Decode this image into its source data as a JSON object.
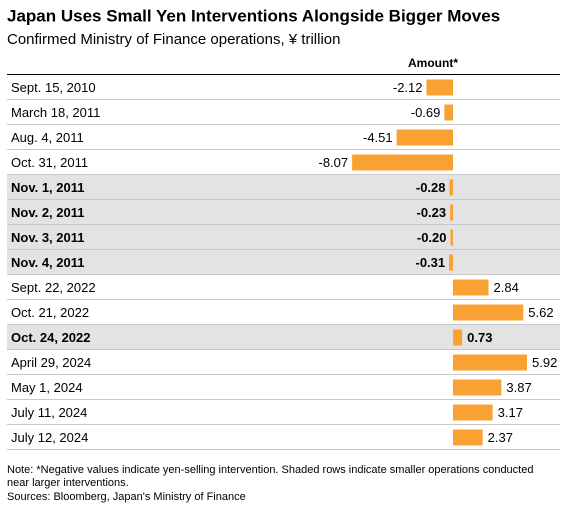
{
  "chart_data": {
    "type": "bar",
    "title": "Japan Uses Small Yen Interventions Alongside Bigger Moves",
    "subtitle": "Confirmed Ministry of Finance operations, ¥ trillion",
    "value_header": "Amount*",
    "categories": [
      "Sept. 15, 2010",
      "March 18, 2011",
      "Aug. 4, 2011",
      "Oct. 31, 2011",
      "Nov. 1, 2011",
      "Nov. 2, 2011",
      "Nov. 3, 2011",
      "Nov. 4, 2011",
      "Sept. 22, 2022",
      "Oct. 21, 2022",
      "Oct. 24, 2022",
      "April 29, 2024",
      "May 1, 2024",
      "July 11, 2024",
      "July 12, 2024"
    ],
    "values": [
      -2.12,
      -0.69,
      -4.51,
      -8.07,
      -0.28,
      -0.23,
      -0.2,
      -0.31,
      2.84,
      5.62,
      0.73,
      5.92,
      3.87,
      3.17,
      2.37
    ],
    "value_labels": [
      "-2.12",
      "-0.69",
      "-4.51",
      "-8.07",
      "-0.28",
      "-0.23",
      "-0.20",
      "-0.31",
      "2.84",
      "5.62",
      "0.73",
      "5.92",
      "3.87",
      "3.17",
      "2.37"
    ],
    "shaded": [
      false,
      false,
      false,
      false,
      true,
      true,
      true,
      true,
      false,
      false,
      true,
      false,
      false,
      false,
      false
    ],
    "color": "#f9a233",
    "note": "Note: *Negative values indicate yen-selling intervention. Shaded rows indicate smaller operations conducted near larger interventions.",
    "source": "Sources: Bloomberg, Japan's Ministry of Finance"
  }
}
